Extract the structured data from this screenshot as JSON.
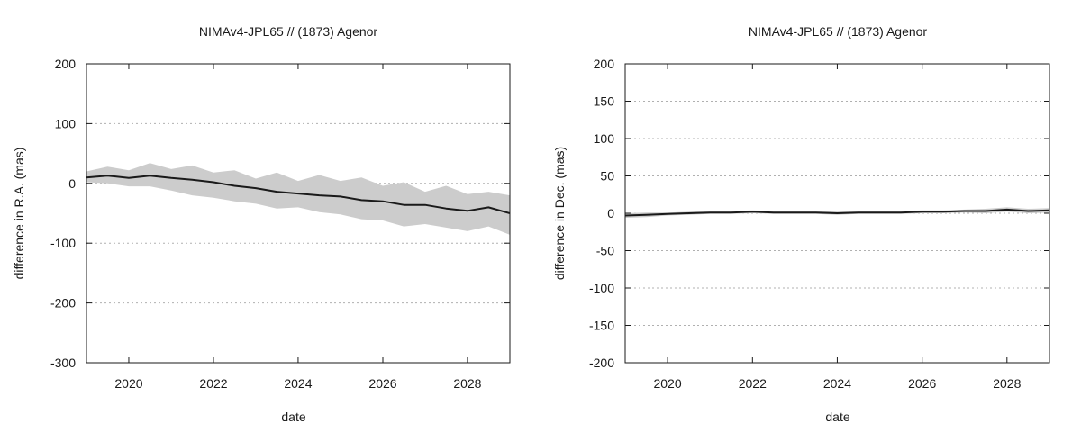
{
  "chart_data": [
    {
      "type": "line",
      "title": "NIMAv4-JPL65 // (1873) Agenor",
      "xlabel": "date",
      "ylabel": "difference in R.A. (mas)",
      "xlim": [
        "2019-01-01",
        "2029-01-01"
      ],
      "ylim": [
        -300,
        200
      ],
      "x_ticks": [
        "2020",
        "2022",
        "2024",
        "2026",
        "2028"
      ],
      "x_tick_dates": [
        "2020-01-01",
        "2022-01-01",
        "2024-01-01",
        "2026-01-01",
        "2028-01-01"
      ],
      "y_ticks": [
        -300,
        -200,
        -100,
        0,
        100,
        200
      ],
      "grid": "horizontal dotted",
      "x": [
        "2019-01-01",
        "2019-07-01",
        "2020-01-01",
        "2020-07-01",
        "2021-01-01",
        "2021-07-01",
        "2022-01-01",
        "2022-07-01",
        "2023-01-01",
        "2023-07-01",
        "2024-01-01",
        "2024-07-01",
        "2025-01-01",
        "2025-07-01",
        "2026-01-01",
        "2026-07-01",
        "2027-01-01",
        "2027-07-01",
        "2028-01-01",
        "2028-07-01",
        "2029-01-01"
      ],
      "series": [
        {
          "values": [
            10,
            13,
            9,
            13,
            9,
            6,
            2,
            -4,
            -8,
            -14,
            -17,
            -20,
            -22,
            -28,
            -30,
            -36,
            -36,
            -42,
            -46,
            -40,
            -50
          ],
          "color": "#1a1a1a"
        }
      ],
      "uncertainty_band": {
        "color": "#cccccc",
        "lower": [
          2,
          0,
          -5,
          -5,
          -12,
          -20,
          -24,
          -30,
          -34,
          -42,
          -40,
          -48,
          -52,
          -60,
          -62,
          -72,
          -68,
          -74,
          -80,
          -72,
          -86
        ],
        "upper": [
          20,
          28,
          22,
          34,
          24,
          30,
          18,
          22,
          8,
          18,
          4,
          14,
          4,
          10,
          -4,
          2,
          -14,
          -4,
          -18,
          -14,
          -20
        ]
      }
    },
    {
      "type": "line",
      "title": "NIMAv4-JPL65 // (1873) Agenor",
      "xlabel": "date",
      "ylabel": "difference in Dec. (mas)",
      "xlim": [
        "2019-01-01",
        "2029-01-01"
      ],
      "ylim": [
        -200,
        200
      ],
      "x_ticks": [
        "2020",
        "2022",
        "2024",
        "2026",
        "2028"
      ],
      "x_tick_dates": [
        "2020-01-01",
        "2022-01-01",
        "2024-01-01",
        "2026-01-01",
        "2028-01-01"
      ],
      "y_ticks": [
        -200,
        -150,
        -100,
        -50,
        0,
        50,
        100,
        150,
        200
      ],
      "grid": "horizontal dotted",
      "x": [
        "2019-01-01",
        "2019-07-01",
        "2020-01-01",
        "2020-07-01",
        "2021-01-01",
        "2021-07-01",
        "2022-01-01",
        "2022-07-01",
        "2023-01-01",
        "2023-07-01",
        "2024-01-01",
        "2024-07-01",
        "2025-01-01",
        "2025-07-01",
        "2026-01-01",
        "2026-07-01",
        "2027-01-01",
        "2027-07-01",
        "2028-01-01",
        "2028-07-01",
        "2029-01-01"
      ],
      "series": [
        {
          "values": [
            -3,
            -2,
            -1,
            0,
            1,
            1,
            2,
            1,
            1,
            1,
            0,
            1,
            1,
            1,
            2,
            2,
            3,
            3,
            5,
            3,
            4
          ],
          "color": "#1a1a1a"
        }
      ],
      "uncertainty_band": {
        "color": "#cccccc",
        "lower": [
          -6,
          -5,
          -3,
          -2,
          -1,
          -1,
          0,
          -1,
          -1,
          -1,
          -2,
          -1,
          -1,
          -1,
          0,
          0,
          1,
          0,
          2,
          0,
          1
        ],
        "upper": [
          0,
          1,
          1,
          2,
          3,
          3,
          4,
          3,
          3,
          3,
          2,
          3,
          3,
          3,
          4,
          4,
          5,
          6,
          8,
          6,
          7
        ]
      }
    }
  ]
}
